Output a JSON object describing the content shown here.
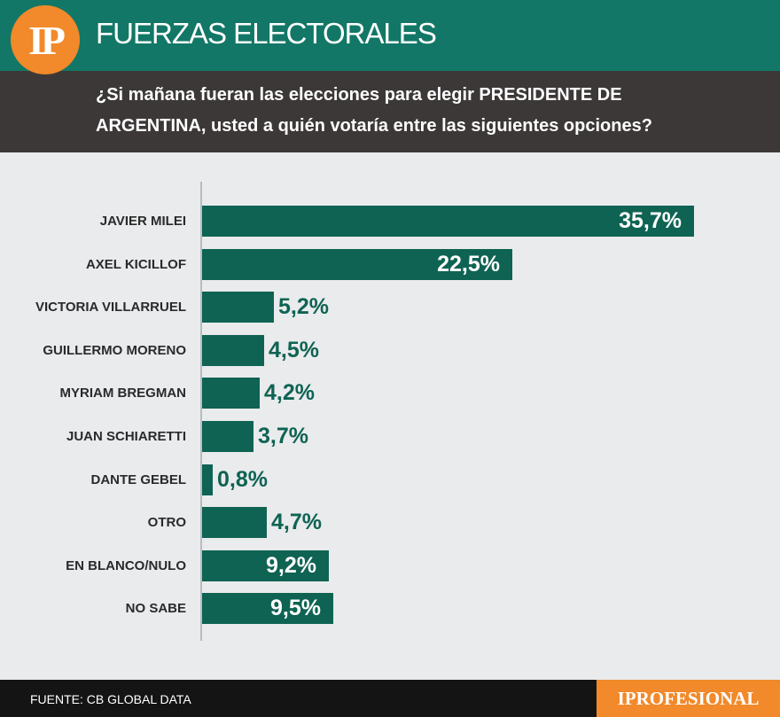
{
  "header": {
    "logo_text": "IP",
    "section_title": "FUERZAS ELECTORALES",
    "question": "¿Si mañana fueran las elecciones para elegir PRESIDENTE DE ARGENTINA, usted a quién votaría entre las siguientes opciones?"
  },
  "chart_data": {
    "type": "bar",
    "orientation": "horizontal",
    "title": "¿Si mañana fueran las elecciones para elegir PRESIDENTE DE ARGENTINA, usted a quién votaría entre las siguientes opciones?",
    "categories": [
      "JAVIER MILEI",
      "AXEL KICILLOF",
      "VICTORIA VILLARRUEL",
      "GUILLERMO MORENO",
      "MYRIAM BREGMAN",
      "JUAN SCHIARETTI",
      "DANTE GEBEL",
      "OTRO",
      "EN BLANCO/NULO",
      "NO SABE"
    ],
    "values": [
      35.7,
      22.5,
      5.2,
      4.5,
      4.2,
      3.7,
      0.8,
      4.7,
      9.2,
      9.5
    ],
    "value_labels": [
      "35,7%",
      "22,5%",
      "5,2%",
      "4,5%",
      "4,2%",
      "3,7%",
      "0,8%",
      "4,7%",
      "9,2%",
      "9,5%"
    ],
    "unit": "%",
    "xlim": [
      0,
      35.7
    ],
    "bar_color": "#0f6353"
  },
  "footer": {
    "source": "FUENTE: CB GLOBAL DATA",
    "brand": "IPROFESIONAL"
  },
  "colors": {
    "primary_green": "#127766",
    "bar_green": "#0f6353",
    "accent_orange": "#f2892a",
    "dark_band": "#3d3838"
  }
}
